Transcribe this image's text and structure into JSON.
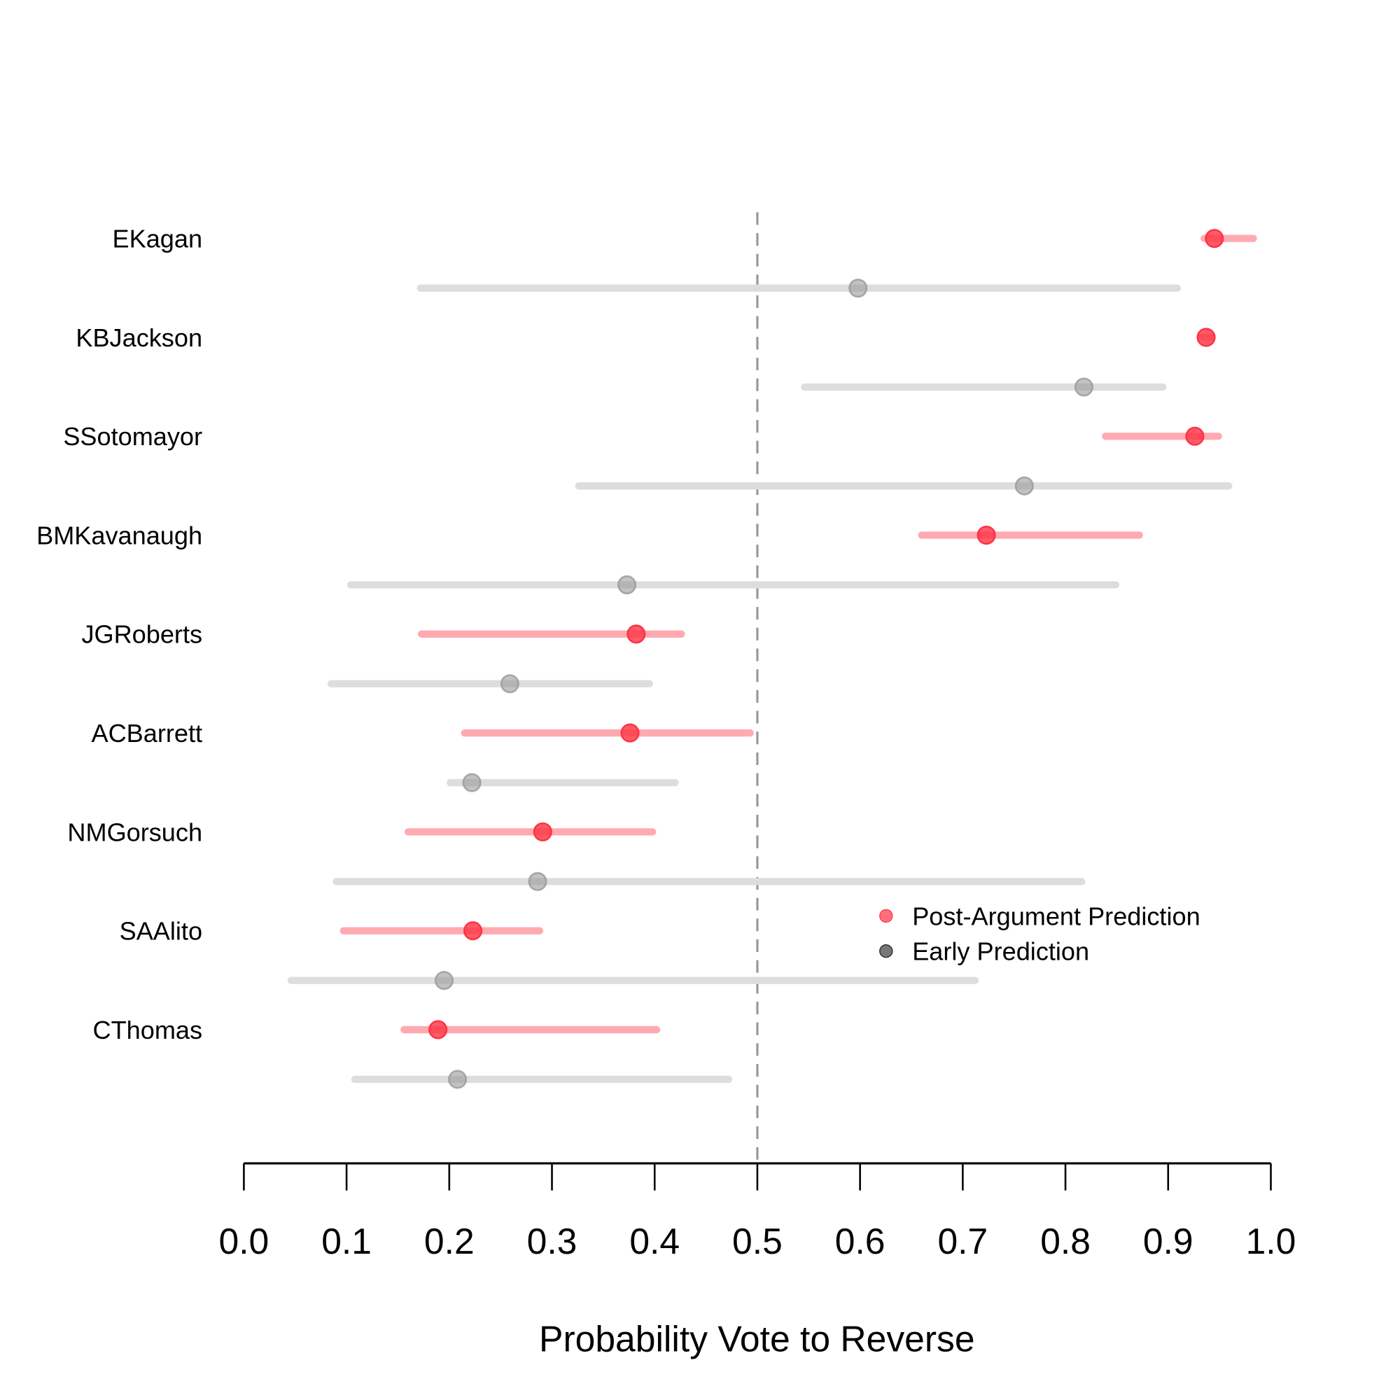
{
  "chart_data": {
    "type": "dot-interval",
    "xlabel": "Probability Vote to Reverse",
    "xlim": [
      0,
      1
    ],
    "xticks": [
      "0.0",
      "0.1",
      "0.2",
      "0.3",
      "0.4",
      "0.5",
      "0.6",
      "0.7",
      "0.8",
      "0.9",
      "1.0"
    ],
    "reference_line": 0.5,
    "legend": {
      "placement": "right",
      "entries": [
        "Post-Argument Prediction",
        "Early Prediction"
      ]
    },
    "colors": {
      "post": "#ff3344",
      "early": "#999999"
    },
    "justices": [
      {
        "name": "EKagan",
        "post": 0.945,
        "post_ci": [
          0.935,
          0.983
        ],
        "early": 0.598,
        "early_ci": [
          0.172,
          0.909
        ]
      },
      {
        "name": "KBJackson",
        "post": 0.937,
        "post_ci": [
          0.933,
          0.942
        ],
        "early": 0.818,
        "early_ci": [
          0.546,
          0.895
        ]
      },
      {
        "name": "SSotomayor",
        "post": 0.926,
        "post_ci": [
          0.839,
          0.949
        ],
        "early": 0.76,
        "early_ci": [
          0.326,
          0.959
        ]
      },
      {
        "name": "BMKavanaugh",
        "post": 0.723,
        "post_ci": [
          0.66,
          0.872
        ],
        "early": 0.373,
        "early_ci": [
          0.104,
          0.849
        ]
      },
      {
        "name": "JGRoberts",
        "post": 0.382,
        "post_ci": [
          0.173,
          0.426
        ],
        "early": 0.259,
        "early_ci": [
          0.085,
          0.395
        ]
      },
      {
        "name": "ACBarrett",
        "post": 0.376,
        "post_ci": [
          0.215,
          0.493
        ],
        "early": 0.222,
        "early_ci": [
          0.201,
          0.42
        ]
      },
      {
        "name": "NMGorsuch",
        "post": 0.291,
        "post_ci": [
          0.16,
          0.398
        ],
        "early": 0.286,
        "early_ci": [
          0.09,
          0.816
        ]
      },
      {
        "name": "SAAlito",
        "post": 0.223,
        "post_ci": [
          0.097,
          0.288
        ],
        "early": 0.195,
        "early_ci": [
          0.046,
          0.712
        ]
      },
      {
        "name": "CThomas",
        "post": 0.189,
        "post_ci": [
          0.156,
          0.402
        ],
        "early": 0.208,
        "early_ci": [
          0.108,
          0.472
        ]
      }
    ]
  }
}
